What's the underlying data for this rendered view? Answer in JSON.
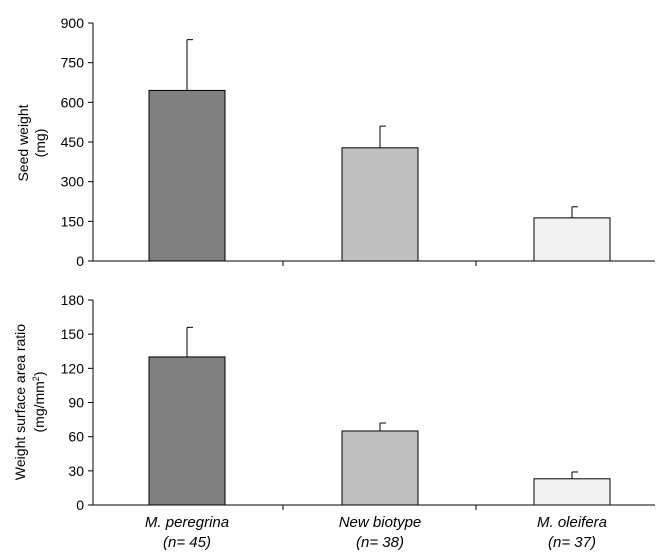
{
  "chart_data": [
    {
      "type": "bar",
      "categories": [
        "M. peregrina",
        "New biotype",
        "M. oleifera"
      ],
      "category_notes": [
        "(n= 45)",
        "(n= 38)",
        "(n= 37)"
      ],
      "values": [
        645,
        428,
        163
      ],
      "errors": [
        192,
        82,
        42
      ],
      "ylabel": [
        "Seed weight",
        "(mg)"
      ],
      "ylim": [
        0,
        900
      ],
      "yticks": [
        0,
        150,
        300,
        450,
        600,
        750,
        900
      ],
      "bar_colors": [
        "#808080",
        "#c0c0c0",
        "#f2f2f2"
      ]
    },
    {
      "type": "bar",
      "categories": [
        "M. peregrina",
        "New biotype",
        "M. oleifera"
      ],
      "category_notes": [
        "(n= 45)",
        "(n= 38)",
        "(n= 37)"
      ],
      "values": [
        130,
        65,
        23
      ],
      "errors": [
        26,
        7,
        6
      ],
      "ylabel": [
        "Weight surface area ratio",
        "(mg/mm",
        "2",
        ")"
      ],
      "ylim": [
        0,
        180
      ],
      "yticks": [
        0,
        30,
        60,
        90,
        120,
        150,
        180
      ],
      "bar_colors": [
        "#808080",
        "#c0c0c0",
        "#f2f2f2"
      ]
    }
  ]
}
